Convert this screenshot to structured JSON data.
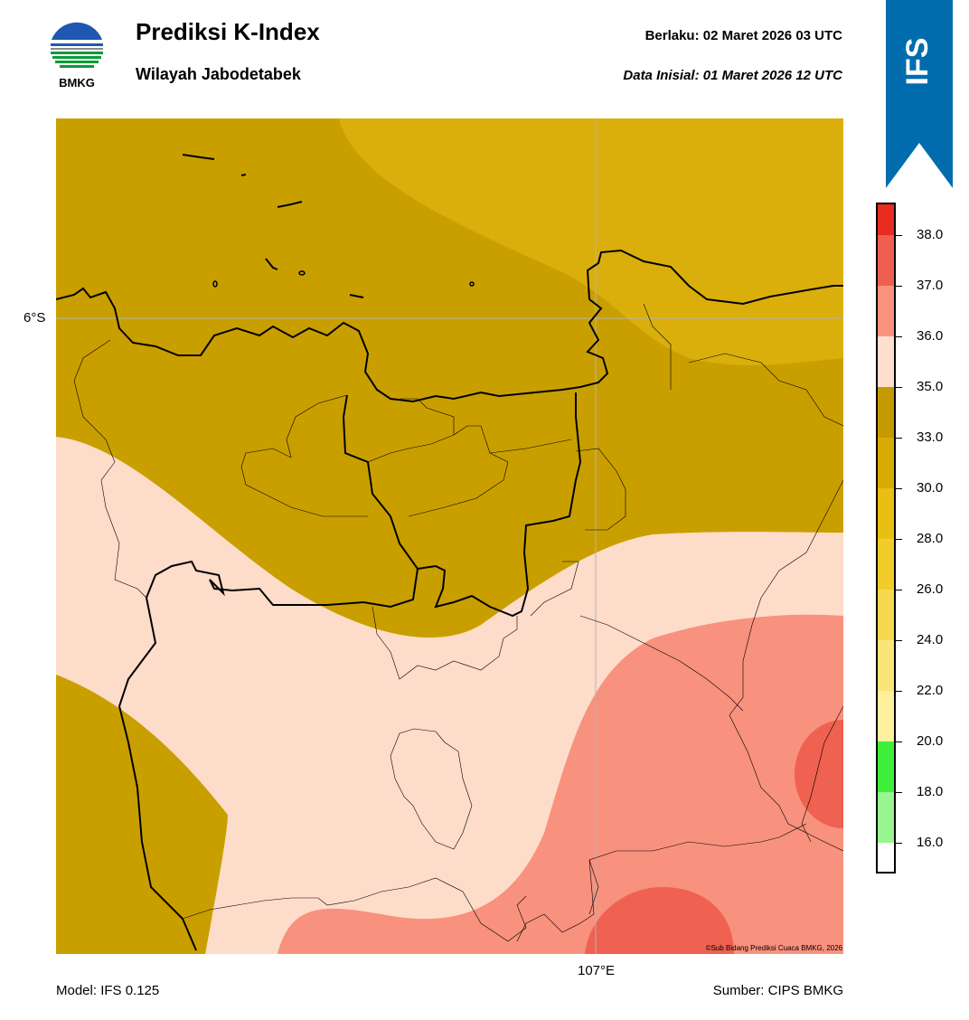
{
  "header": {
    "logo_label": "BMKG",
    "title": "Prediksi K-Index",
    "subtitle": "Wilayah Jabodetabek",
    "valid": "Berlaku:  02 Maret 2026 03 UTC",
    "initial": "Data Inisial:  01 Maret 2026 12 UTC",
    "banner_label": "IFS",
    "banner_color": "#006cae"
  },
  "map": {
    "lat_label": "6°S",
    "lon_label": "107°E",
    "copyright": "©Sub Bidang Prediksi Cuaca BMKG, 2026",
    "field_colors": {
      "k_30_33": "#daaf0b",
      "k_33_35": "#c99f00",
      "k_35_36": "#fedcca",
      "k_36_37": "#f8917d",
      "k_37_38": "#ef6150"
    }
  },
  "colorbar": {
    "ticks": [
      "38.0",
      "37.0",
      "36.0",
      "35.0",
      "33.0",
      "30.0",
      "28.0",
      "26.0",
      "24.0",
      "22.0",
      "20.0",
      "18.0",
      "16.0"
    ],
    "bins": [
      {
        "color": "#e82c21"
      },
      {
        "color": "#ef5f4f"
      },
      {
        "color": "#f9937f"
      },
      {
        "color": "#ffdfd0"
      },
      {
        "color": "#c59a00"
      },
      {
        "color": "#d8ab04"
      },
      {
        "color": "#e8bf12"
      },
      {
        "color": "#f1cc2b"
      },
      {
        "color": "#f6d94f"
      },
      {
        "color": "#fbe57a"
      },
      {
        "color": "#fff09d"
      },
      {
        "color": "#3fee3a"
      },
      {
        "color": "#98f58f"
      },
      {
        "color": "#ffffff"
      }
    ]
  },
  "footer": {
    "model": "Model: IFS 0.125",
    "source": "Sumber: CIPS BMKG"
  }
}
